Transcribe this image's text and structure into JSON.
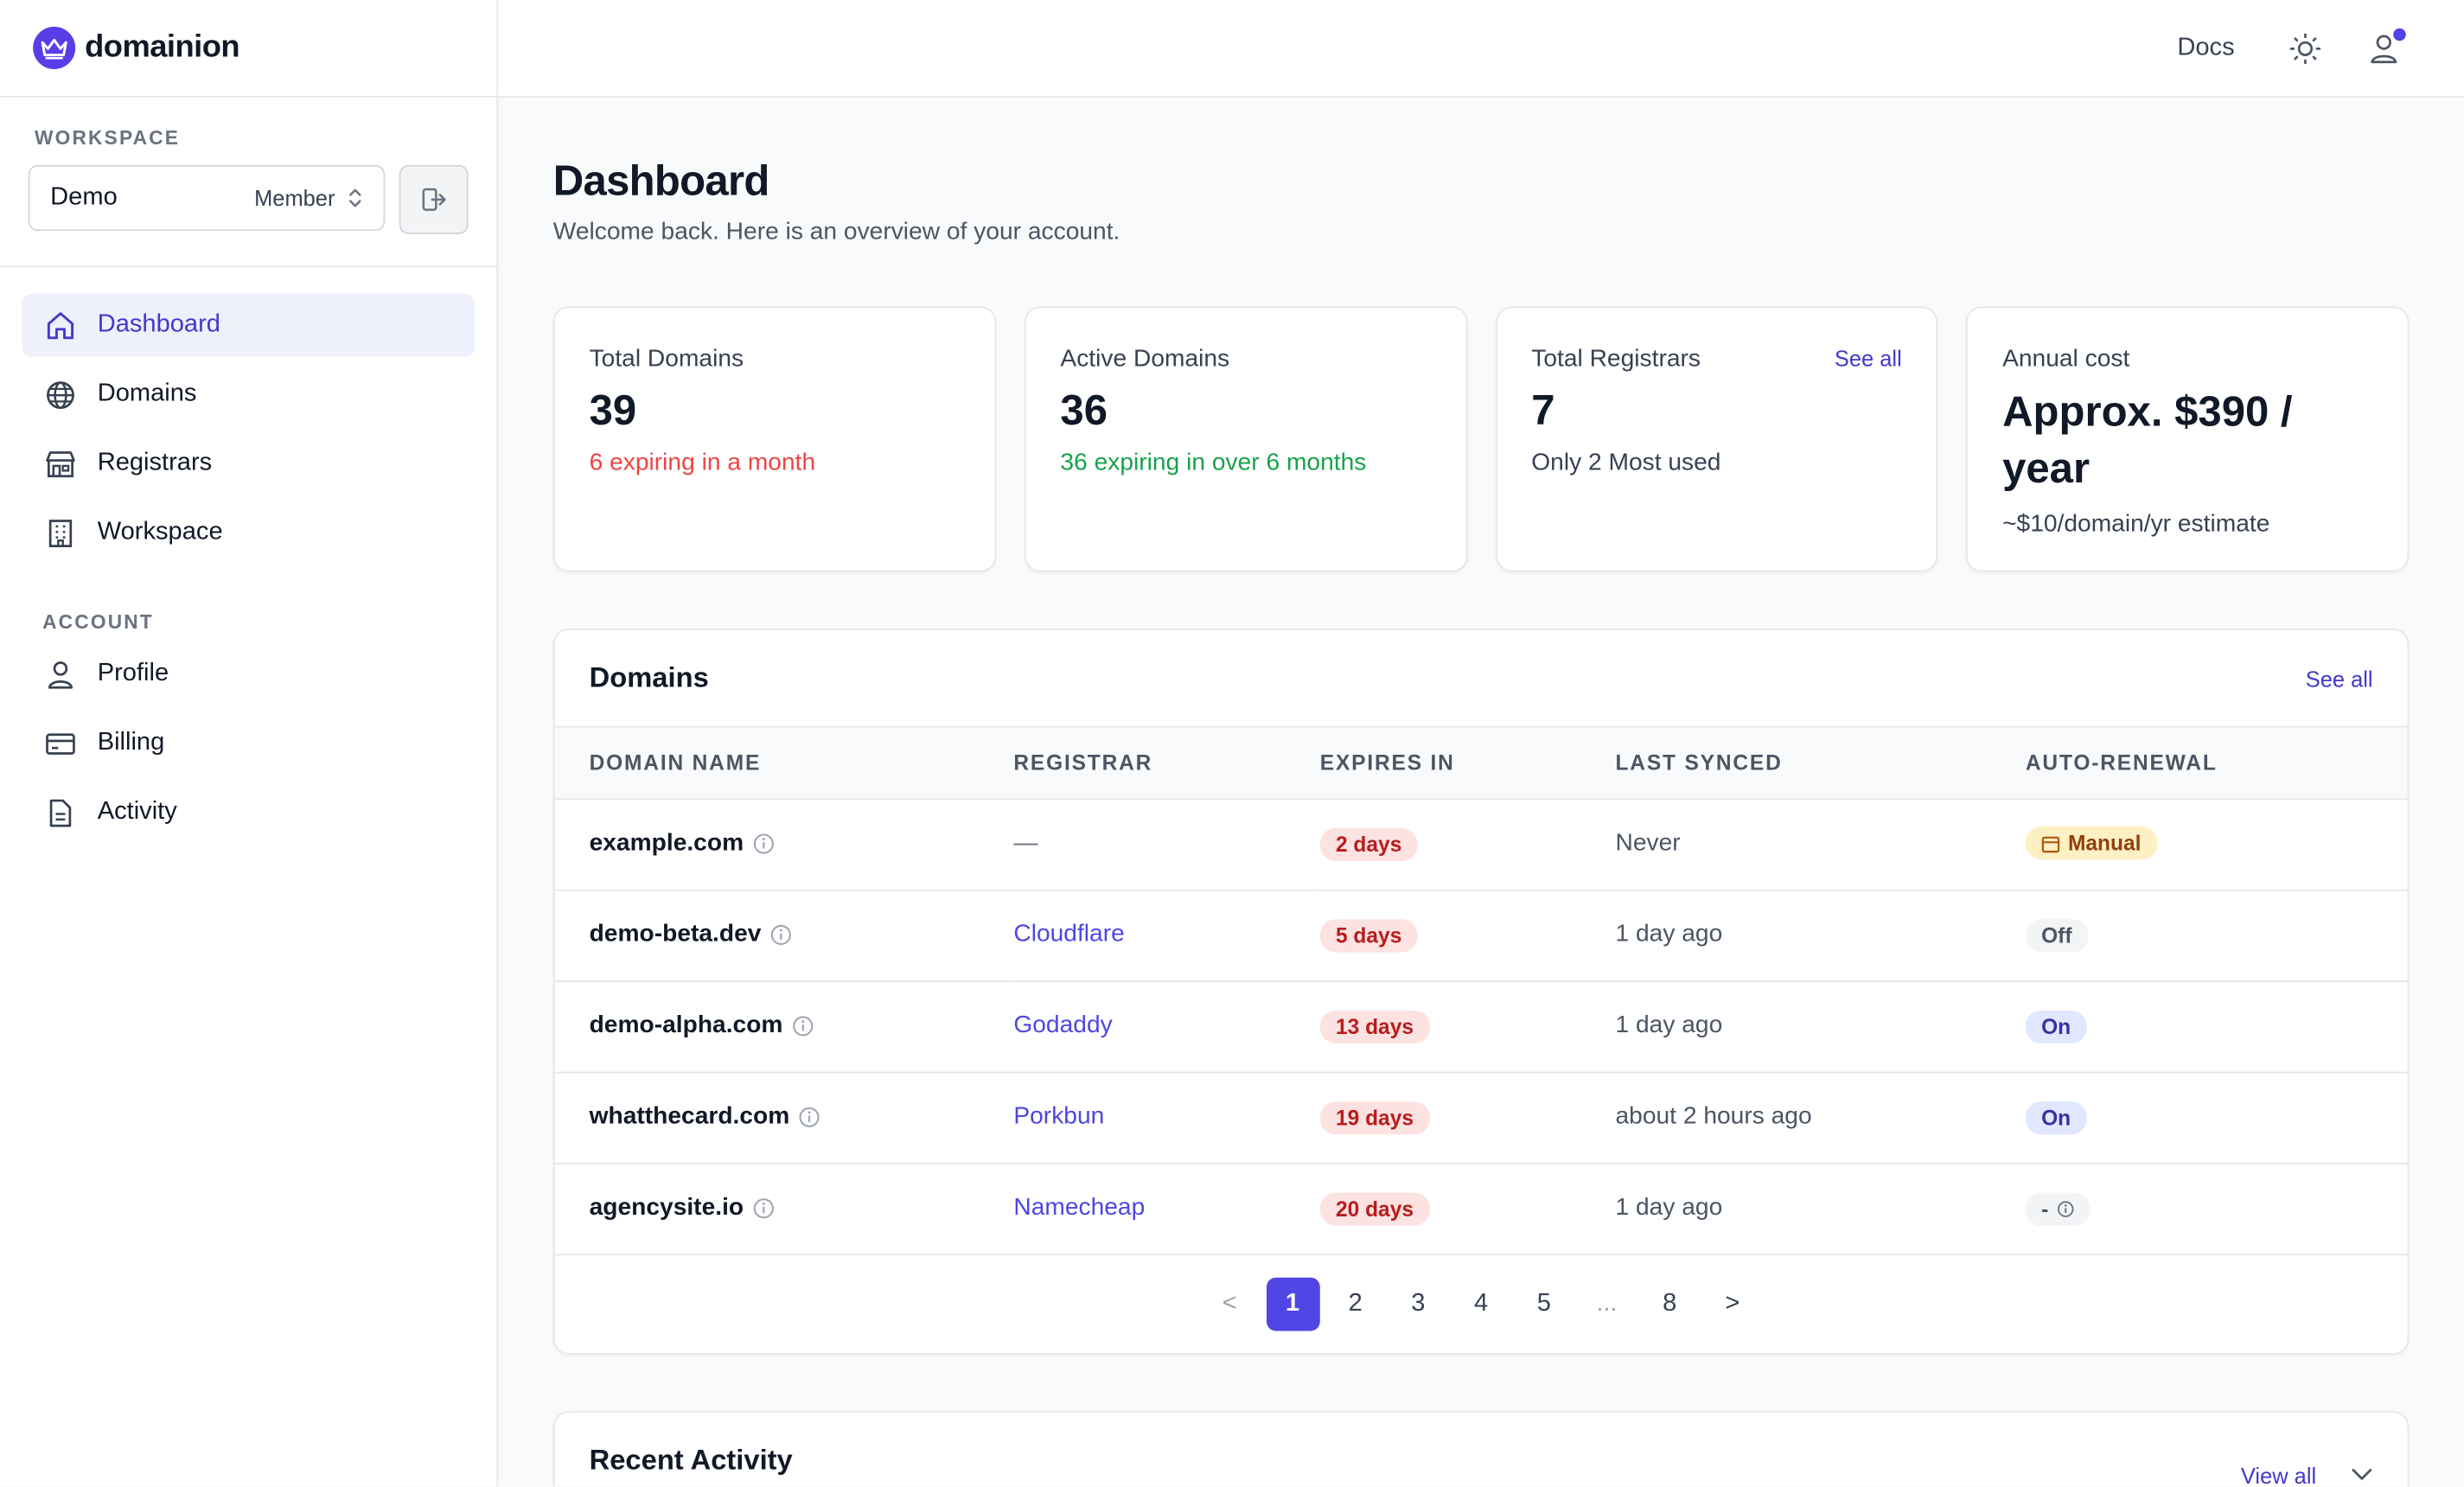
{
  "app": {
    "brand": "domainion"
  },
  "topbar": {
    "docs_label": "Docs"
  },
  "sidebar": {
    "workspace_label": "WORKSPACE",
    "workspace": {
      "name": "Demo",
      "role": "Member"
    },
    "nav": [
      {
        "label": "Dashboard",
        "icon": "home-icon",
        "active": true
      },
      {
        "label": "Domains",
        "icon": "globe-icon"
      },
      {
        "label": "Registrars",
        "icon": "store-icon"
      },
      {
        "label": "Workspace",
        "icon": "building-icon"
      }
    ],
    "account_label": "ACCOUNT",
    "account_nav": [
      {
        "label": "Profile",
        "icon": "user-icon"
      },
      {
        "label": "Billing",
        "icon": "credit-card-icon"
      },
      {
        "label": "Activity",
        "icon": "file-icon"
      }
    ]
  },
  "page": {
    "title": "Dashboard",
    "subtitle": "Welcome back. Here is an overview of your account."
  },
  "stats": [
    {
      "label": "Total Domains",
      "value": "39",
      "note": "6 expiring in a month",
      "note_color": "#ef4444"
    },
    {
      "label": "Active Domains",
      "value": "36",
      "note": "36 expiring in over 6 months",
      "note_color": "#16a34a"
    },
    {
      "label": "Total Registrars",
      "value": "7",
      "note": "Only 2 Most used",
      "link": "See all"
    },
    {
      "label": "Annual cost",
      "value": "Approx. $390 / year",
      "note": "~$10/domain/yr estimate"
    }
  ],
  "domains_card": {
    "title": "Domains",
    "see_all": "See all",
    "columns": [
      "DOMAIN NAME",
      "REGISTRAR",
      "EXPIRES IN",
      "LAST SYNCED",
      "AUTO-RENEWAL"
    ],
    "rows": [
      {
        "domain": "example.com",
        "registrar": "—",
        "expires": "2 days",
        "synced": "Never",
        "auto": "Manual"
      },
      {
        "domain": "demo-beta.dev",
        "registrar": "Cloudflare",
        "expires": "5 days",
        "synced": "1 day ago",
        "auto": "Off"
      },
      {
        "domain": "demo-alpha.com",
        "registrar": "Godaddy",
        "expires": "13 days",
        "synced": "1 day ago",
        "auto": "On"
      },
      {
        "domain": "whatthecard.com",
        "registrar": "Porkbun",
        "expires": "19 days",
        "synced": "about 2 hours ago",
        "auto": "On"
      },
      {
        "domain": "agencysite.io",
        "registrar": "Namecheap",
        "expires": "20 days",
        "synced": "1 day ago",
        "auto": "-"
      }
    ],
    "pagination": {
      "prev": "<",
      "pages": [
        "1",
        "2",
        "3",
        "4",
        "5",
        "...",
        "8"
      ],
      "next": ">",
      "current": "1"
    }
  },
  "activity_card": {
    "title": "Recent Activity",
    "view_all": "View all"
  },
  "colors": {
    "accent": "#4f46e5",
    "danger": "#ef4444",
    "success": "#16a34a"
  }
}
